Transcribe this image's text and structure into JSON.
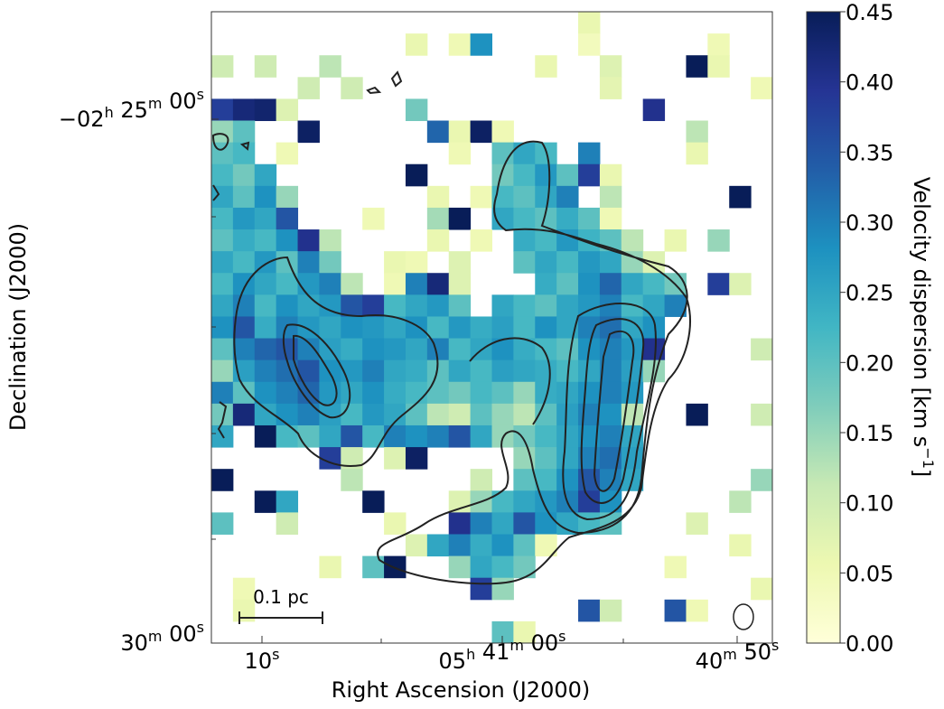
{
  "chart_data": {
    "type": "heatmap",
    "x_label": "Right Ascension (J2000)",
    "y_label": "Declination (J2000)",
    "xtick_labels": [
      [
        [
          "10",
          "s"
        ]
      ],
      [
        [
          "05",
          "h"
        ],
        [
          " 41",
          "m"
        ],
        [
          " 00",
          "s"
        ]
      ],
      [
        [
          "40",
          "m"
        ],
        [
          " 50",
          "s"
        ]
      ]
    ],
    "ytick_labels": [
      [
        [
          "−02",
          "h"
        ],
        [
          " 25",
          "m"
        ],
        [
          " 00",
          "s"
        ]
      ],
      [
        [
          "30",
          "m"
        ],
        [
          " 00",
          "s"
        ]
      ]
    ],
    "scale_bar_label": "0.1 pc",
    "colorbar": {
      "label": "Velocity dispersion [km s",
      "label_sup": "−1",
      "label_end": "]",
      "lim": [
        0,
        0.45
      ],
      "ticks": [
        {
          "value": 0,
          "label": "0.00"
        },
        0.05,
        {
          "value": 0.1,
          "label": "0.10"
        },
        0.15,
        {
          "value": 0.2,
          "label": "0.20"
        },
        0.25,
        {
          "value": 0.3,
          "label": "0.30"
        },
        0.35,
        {
          "value": 0.4,
          "label": "0.40"
        },
        0.45
      ],
      "colors": [
        "#ffffd9",
        "#edf8b1",
        "#c7e9b4",
        "#7fcdbb",
        "#41b6c4",
        "#1d91c0",
        "#225ea8",
        "#253494",
        "#081d58"
      ]
    },
    "grid": [
      [
        null,
        null,
        null,
        null,
        null,
        null,
        null,
        null,
        null,
        null,
        null,
        null,
        null,
        null,
        null,
        null,
        null,
        0.06,
        null,
        null,
        null,
        null,
        null,
        null,
        null,
        null
      ],
      [
        null,
        null,
        null,
        null,
        null,
        null,
        null,
        null,
        null,
        0.06,
        null,
        0.05,
        0.28,
        null,
        null,
        null,
        null,
        0.04,
        null,
        null,
        null,
        null,
        null,
        0.05,
        null,
        null
      ],
      [
        0.1,
        null,
        0.1,
        null,
        null,
        0.12,
        null,
        null,
        null,
        null,
        null,
        null,
        null,
        null,
        null,
        0.06,
        null,
        null,
        0.08,
        null,
        null,
        null,
        0.45,
        0.06,
        null,
        null
      ],
      [
        null,
        null,
        null,
        null,
        0.1,
        null,
        0.1,
        null,
        null,
        null,
        null,
        null,
        null,
        null,
        null,
        null,
        null,
        null,
        0.07,
        null,
        null,
        null,
        null,
        null,
        null,
        0.05
      ],
      [
        0.38,
        0.42,
        0.43,
        0.08,
        null,
        null,
        null,
        null,
        null,
        0.18,
        null,
        null,
        null,
        null,
        null,
        null,
        null,
        null,
        null,
        null,
        0.4,
        null,
        null,
        null,
        null,
        null
      ],
      [
        0.15,
        0.2,
        null,
        null,
        0.44,
        null,
        null,
        null,
        null,
        null,
        0.33,
        0.06,
        0.44,
        0.05,
        null,
        null,
        null,
        null,
        null,
        null,
        null,
        null,
        0.12,
        null,
        null,
        null
      ],
      [
        0.2,
        0.22,
        null,
        0.05,
        null,
        null,
        null,
        null,
        null,
        null,
        null,
        0.05,
        null,
        0.2,
        0.25,
        0.22,
        null,
        0.3,
        null,
        null,
        null,
        null,
        0.06,
        null,
        null,
        null
      ],
      [
        0.22,
        0.18,
        0.25,
        null,
        null,
        null,
        null,
        null,
        null,
        0.45,
        null,
        null,
        null,
        0.18,
        0.22,
        0.27,
        0.2,
        0.38,
        0.06,
        null,
        null,
        null,
        null,
        null,
        null,
        null
      ],
      [
        0.25,
        0.2,
        0.28,
        0.15,
        null,
        null,
        null,
        null,
        null,
        null,
        0.06,
        null,
        0.05,
        0.22,
        0.2,
        0.25,
        0.3,
        null,
        0.12,
        null,
        null,
        null,
        null,
        null,
        0.45,
        null
      ],
      [
        0.22,
        0.27,
        0.25,
        0.35,
        null,
        null,
        null,
        0.05,
        null,
        null,
        0.14,
        0.45,
        null,
        0.25,
        0.22,
        0.2,
        0.24,
        0.2,
        0.05,
        null,
        null,
        null,
        null,
        null,
        null,
        null
      ],
      [
        0.2,
        0.24,
        0.22,
        0.28,
        0.4,
        0.12,
        null,
        null,
        null,
        null,
        0.06,
        null,
        0.05,
        null,
        0.24,
        0.22,
        0.27,
        0.23,
        0.2,
        0.12,
        null,
        0.06,
        null,
        0.15,
        null,
        null
      ],
      [
        0.25,
        0.22,
        0.27,
        0.2,
        0.3,
        0.18,
        null,
        null,
        0.06,
        0.05,
        null,
        0.08,
        null,
        null,
        0.2,
        0.25,
        0.22,
        0.27,
        0.25,
        0.15,
        0.08,
        null,
        null,
        null,
        null,
        null
      ],
      [
        0.22,
        0.28,
        0.25,
        0.22,
        0.27,
        0.3,
        0.12,
        null,
        0.05,
        0.3,
        0.42,
        0.08,
        null,
        null,
        null,
        0.24,
        0.2,
        0.28,
        0.33,
        0.25,
        0.22,
        0.18,
        null,
        0.38,
        0.08,
        null
      ],
      [
        0.25,
        0.3,
        0.22,
        0.28,
        0.25,
        0.27,
        0.35,
        0.38,
        0.22,
        0.25,
        0.27,
        0.2,
        null,
        0.25,
        0.22,
        0.2,
        0.25,
        0.27,
        0.3,
        0.22,
        0.25,
        0.3,
        null,
        null,
        null,
        null
      ],
      [
        0.28,
        0.35,
        0.24,
        0.3,
        0.27,
        0.25,
        0.28,
        0.27,
        0.25,
        0.28,
        0.22,
        0.27,
        0.24,
        0.26,
        0.22,
        0.28,
        0.25,
        0.3,
        0.32,
        0.25,
        0.28,
        null,
        null,
        null,
        null,
        null
      ],
      [
        0.2,
        0.3,
        0.33,
        0.35,
        0.3,
        0.26,
        0.24,
        0.28,
        0.27,
        0.25,
        0.3,
        0.22,
        0.25,
        0.28,
        0.24,
        0.22,
        0.2,
        0.28,
        0.3,
        0.27,
        0.4,
        null,
        null,
        null,
        null,
        0.1
      ],
      [
        0.15,
        0.26,
        0.3,
        0.32,
        0.35,
        0.28,
        0.27,
        0.3,
        0.25,
        0.24,
        0.2,
        0.25,
        0.22,
        0.26,
        0.25,
        0.24,
        0.22,
        0.25,
        0.3,
        0.26,
        0.15,
        null,
        null,
        null,
        null,
        null
      ],
      [
        0.3,
        0.2,
        0.28,
        0.3,
        0.33,
        0.27,
        0.25,
        0.28,
        0.24,
        0.22,
        0.2,
        0.18,
        0.22,
        0.2,
        0.15,
        0.24,
        0.25,
        0.28,
        0.3,
        0.27,
        null,
        null,
        null,
        null,
        null,
        null
      ],
      [
        0.18,
        0.42,
        0.25,
        0.28,
        0.3,
        0.26,
        0.22,
        0.27,
        0.25,
        0.2,
        0.12,
        0.1,
        0.2,
        0.15,
        0.12,
        0.2,
        0.26,
        0.3,
        0.28,
        0.12,
        null,
        null,
        0.45,
        null,
        null,
        0.1
      ],
      [
        0.25,
        null,
        0.45,
        0.22,
        0.2,
        0.25,
        0.35,
        0.22,
        0.3,
        0.28,
        0.3,
        0.35,
        0.25,
        0.15,
        0.18,
        0.22,
        0.25,
        0.28,
        0.3,
        0.25,
        null,
        null,
        null,
        null,
        null,
        null
      ],
      [
        null,
        null,
        null,
        null,
        null,
        0.38,
        0.1,
        null,
        0.08,
        0.44,
        null,
        null,
        null,
        null,
        0.15,
        0.2,
        0.25,
        0.3,
        0.32,
        0.26,
        null,
        null,
        null,
        null,
        null,
        null
      ],
      [
        0.45,
        null,
        null,
        null,
        null,
        null,
        0.12,
        null,
        null,
        null,
        null,
        null,
        0.1,
        null,
        0.2,
        0.22,
        0.28,
        0.35,
        0.3,
        0.25,
        null,
        null,
        null,
        null,
        null,
        0.15
      ],
      [
        null,
        null,
        0.45,
        0.25,
        null,
        null,
        null,
        0.45,
        null,
        null,
        null,
        0.08,
        0.15,
        0.22,
        0.25,
        0.27,
        0.3,
        0.38,
        0.28,
        null,
        null,
        null,
        null,
        null,
        0.12,
        null
      ],
      [
        0.2,
        null,
        null,
        0.1,
        null,
        null,
        null,
        null,
        0.06,
        null,
        null,
        0.4,
        0.3,
        0.25,
        0.35,
        0.28,
        0.25,
        0.22,
        0.2,
        null,
        null,
        null,
        0.08,
        null,
        null,
        null
      ],
      [
        null,
        null,
        null,
        null,
        null,
        null,
        null,
        null,
        null,
        0.08,
        0.25,
        0.3,
        0.24,
        0.28,
        0.2,
        0.05,
        null,
        null,
        null,
        null,
        null,
        null,
        null,
        null,
        0.06,
        null
      ],
      [
        null,
        null,
        null,
        null,
        null,
        0.06,
        null,
        0.2,
        0.45,
        null,
        null,
        0.15,
        0.25,
        0.22,
        0.18,
        null,
        null,
        null,
        null,
        null,
        null,
        0.05,
        null,
        null,
        null,
        null
      ],
      [
        null,
        0.05,
        null,
        null,
        null,
        null,
        null,
        null,
        null,
        null,
        null,
        null,
        0.38,
        0.15,
        null,
        null,
        null,
        null,
        null,
        null,
        null,
        null,
        null,
        null,
        null,
        0.06
      ],
      [
        null,
        0.06,
        null,
        null,
        null,
        null,
        null,
        null,
        null,
        null,
        null,
        null,
        null,
        null,
        null,
        null,
        null,
        0.35,
        0.1,
        null,
        null,
        0.35,
        0.05,
        null,
        null,
        null
      ],
      [
        null,
        null,
        null,
        null,
        null,
        null,
        null,
        null,
        null,
        null,
        null,
        null,
        null,
        0.2,
        0.06,
        null,
        null,
        null,
        null,
        null,
        null,
        null,
        null,
        null,
        null,
        null
      ]
    ]
  }
}
